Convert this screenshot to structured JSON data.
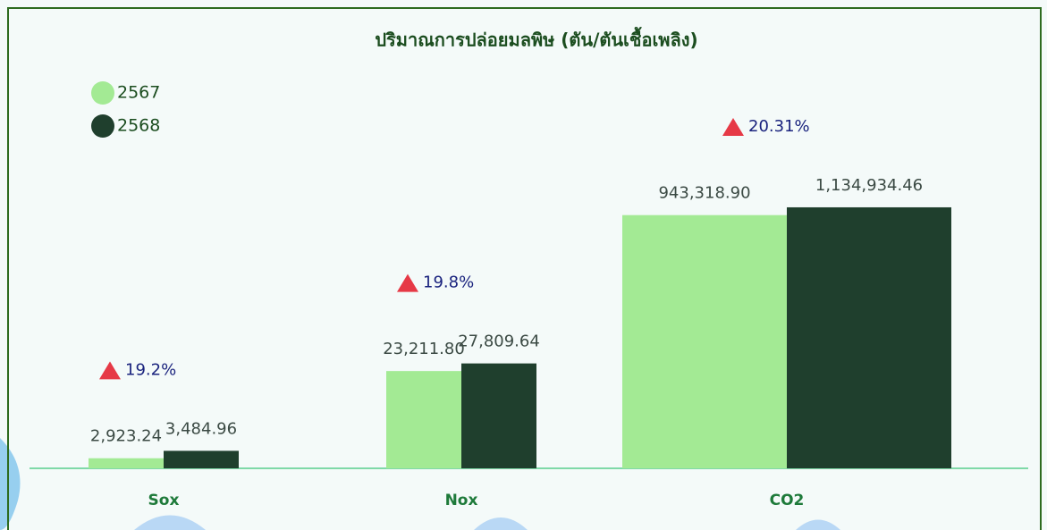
{
  "chart_data": {
    "type": "bar",
    "title": "ปริมาณการปล่อยมลพิษ (ตัน/ตันเชื้อเพลิง)",
    "categories": [
      "Sox",
      "Nox",
      "CO2"
    ],
    "series": [
      {
        "name": "2567",
        "color": "#a3ea94",
        "values": [
          2923.24,
          23211.8,
          943318.9
        ],
        "value_labels": [
          "2,923.24",
          "23,211.80",
          "943,318.90"
        ]
      },
      {
        "name": "2568",
        "color": "#1f3f2d",
        "values": [
          3484.96,
          27809.64,
          1134934.46
        ],
        "value_labels": [
          "3,484.96",
          "27,809.64",
          "1,134,934.46"
        ]
      }
    ],
    "annotations": [
      "19.2%",
      "19.8%",
      "20.31%"
    ],
    "log_scale": true,
    "ylim": [
      2300,
      8000000
    ],
    "legend": "top-left"
  }
}
